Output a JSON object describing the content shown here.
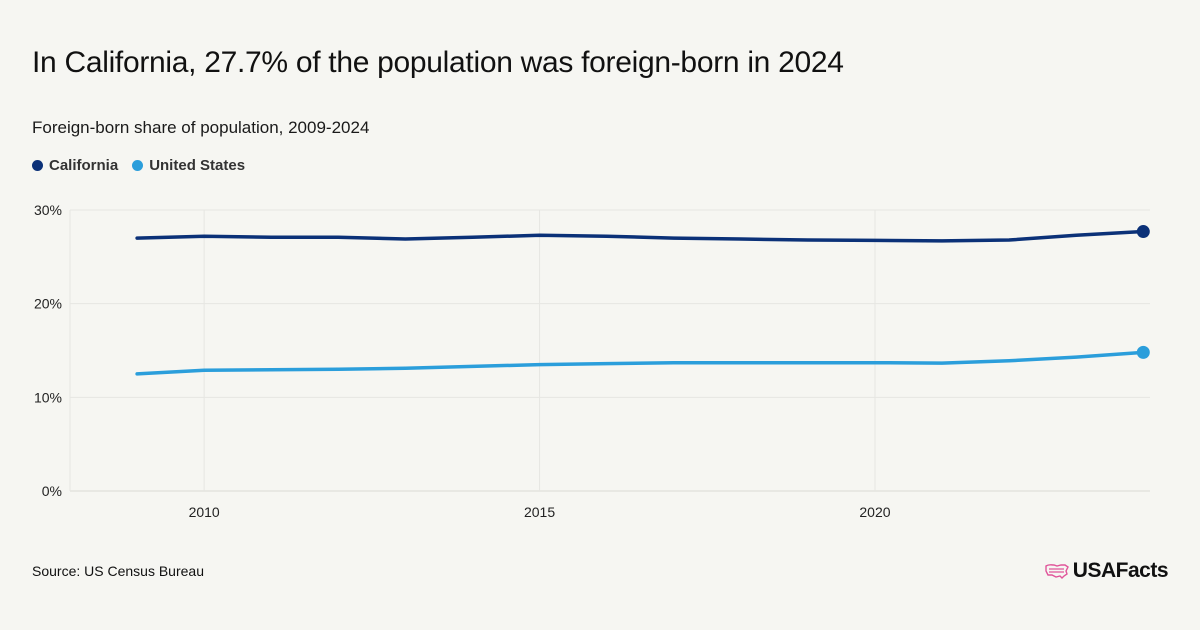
{
  "header": {
    "title": "In California, 27.7% of the population was foreign-born in 2024",
    "subtitle": "Foreign-born share of population, 2009-2024"
  },
  "footer": {
    "source": "Source: US Census Bureau",
    "brand": "USAFacts",
    "brand_icon": "us-map-flag-icon"
  },
  "colors": {
    "background": "#f6f6f2",
    "california": "#0b3178",
    "united_states": "#2b9edb",
    "grid": "#e6e6e2",
    "brand_icon": "#e0559a"
  },
  "chart_data": {
    "type": "line",
    "title": "Foreign-born share of population, 2009-2024",
    "xlabel": "",
    "ylabel": "",
    "x": [
      2009,
      2010,
      2011,
      2012,
      2013,
      2014,
      2015,
      2016,
      2017,
      2018,
      2019,
      2020,
      2021,
      2022,
      2023,
      2024
    ],
    "xlim": [
      2008,
      2024.1
    ],
    "ylim": [
      0,
      30
    ],
    "x_ticks": [
      2010,
      2015,
      2020
    ],
    "x_tick_labels": [
      "2010",
      "2015",
      "2020"
    ],
    "y_ticks": [
      0,
      10,
      20,
      30
    ],
    "y_tick_labels": [
      "0%",
      "10%",
      "20%",
      "30%"
    ],
    "grid": true,
    "legend_position": "top-left",
    "series": [
      {
        "name": "California",
        "color": "#0b3178",
        "values": [
          27.0,
          27.2,
          27.1,
          27.1,
          26.9,
          27.1,
          27.3,
          27.2,
          27.0,
          26.9,
          26.8,
          26.75,
          26.7,
          26.8,
          27.3,
          27.7
        ]
      },
      {
        "name": "United States",
        "color": "#2b9edb",
        "values": [
          12.5,
          12.9,
          12.95,
          13.0,
          13.1,
          13.3,
          13.5,
          13.6,
          13.7,
          13.7,
          13.7,
          13.7,
          13.65,
          13.9,
          14.3,
          14.8
        ]
      }
    ]
  }
}
